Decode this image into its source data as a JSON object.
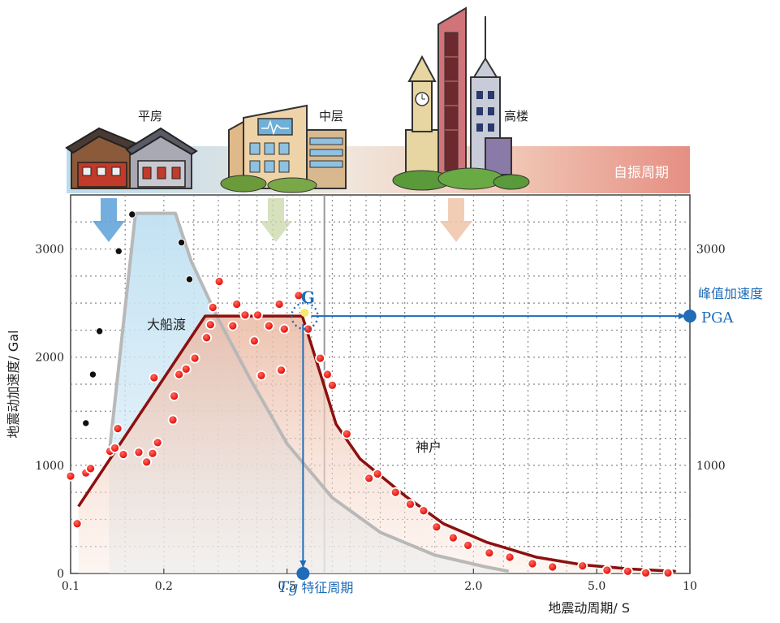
{
  "chart_data": {
    "type": "scatter",
    "xscale": "log",
    "xlim": [
      0.1,
      10
    ],
    "ylim": [
      0,
      3500
    ],
    "x_ticks": [
      {
        "v": 0.1,
        "label": "0.1"
      },
      {
        "v": 0.2,
        "label": "0.2"
      },
      {
        "v": 0.5,
        "label": "0.5"
      },
      {
        "v": 2.0,
        "label": "2.0"
      },
      {
        "v": 5.0,
        "label": "5.0"
      },
      {
        "v": 10,
        "label": "10"
      }
    ],
    "y_ticks_left": [
      {
        "v": 0,
        "label": "0"
      },
      {
        "v": 1000,
        "label": "1000"
      },
      {
        "v": 2000,
        "label": "2000"
      },
      {
        "v": 3000,
        "label": "3000"
      }
    ],
    "y_ticks_right": [
      {
        "v": 1000,
        "label": "1000"
      },
      {
        "v": 3000,
        "label": "3000"
      }
    ],
    "xlabel": "地震动周期/ S",
    "ylabel": "地震动加速度/ Gal",
    "grid": true,
    "series": [
      {
        "name": "大船渡",
        "color": "#111111",
        "points": [
          [
            0.112,
            1390
          ],
          [
            0.118,
            1840
          ],
          [
            0.124,
            2240
          ],
          [
            0.143,
            2980
          ],
          [
            0.158,
            3320
          ],
          [
            0.228,
            3060
          ],
          [
            0.242,
            2720
          ]
        ]
      },
      {
        "name": "神户",
        "color": "#ee1111",
        "points": [
          [
            0.1,
            900
          ],
          [
            0.105,
            460
          ],
          [
            0.112,
            930
          ],
          [
            0.116,
            970
          ],
          [
            0.134,
            1130
          ],
          [
            0.139,
            1160
          ],
          [
            0.142,
            1340
          ],
          [
            0.148,
            1100
          ],
          [
            0.166,
            1120
          ],
          [
            0.176,
            1030
          ],
          [
            0.184,
            1110
          ],
          [
            0.186,
            1810
          ],
          [
            0.191,
            1210
          ],
          [
            0.214,
            1420
          ],
          [
            0.216,
            1640
          ],
          [
            0.224,
            1840
          ],
          [
            0.236,
            1890
          ],
          [
            0.252,
            1990
          ],
          [
            0.275,
            2180
          ],
          [
            0.283,
            2300
          ],
          [
            0.288,
            2460
          ],
          [
            0.302,
            2700
          ],
          [
            0.334,
            2290
          ],
          [
            0.344,
            2490
          ],
          [
            0.366,
            2390
          ],
          [
            0.392,
            2150
          ],
          [
            0.402,
            2390
          ],
          [
            0.413,
            1830
          ],
          [
            0.437,
            2290
          ],
          [
            0.472,
            2490
          ],
          [
            0.479,
            1880
          ],
          [
            0.49,
            2260
          ],
          [
            0.545,
            2570
          ],
          [
            0.585,
            2260
          ],
          [
            0.64,
            1990
          ],
          [
            0.675,
            1840
          ],
          [
            0.7,
            1740
          ],
          [
            0.78,
            1290
          ],
          [
            0.92,
            880
          ],
          [
            0.98,
            920
          ],
          [
            1.12,
            750
          ],
          [
            1.25,
            640
          ],
          [
            1.38,
            580
          ],
          [
            1.52,
            430
          ],
          [
            1.72,
            330
          ],
          [
            1.92,
            260
          ],
          [
            2.25,
            190
          ],
          [
            2.62,
            150
          ],
          [
            3.1,
            90
          ],
          [
            3.6,
            60
          ],
          [
            4.5,
            70
          ],
          [
            5.4,
            30
          ],
          [
            6.3,
            20
          ],
          [
            7.2,
            5
          ],
          [
            8.5,
            5
          ]
        ]
      }
    ],
    "envelope_wide": [
      [
        0.133,
        1090
      ],
      [
        0.162,
        3330
      ],
      [
        0.218,
        3330
      ],
      [
        0.245,
        2890
      ],
      [
        0.3,
        2350
      ],
      [
        0.38,
        1800
      ],
      [
        0.5,
        1200
      ],
      [
        0.7,
        700
      ],
      [
        1.0,
        380
      ],
      [
        1.5,
        170
      ],
      [
        2.2,
        60
      ],
      [
        2.6,
        20
      ]
    ],
    "envelope_shenhu": [
      [
        0.106,
        620
      ],
      [
        0.272,
        2380
      ],
      [
        0.56,
        2380
      ],
      [
        0.615,
        2010
      ],
      [
        0.72,
        1380
      ],
      [
        0.86,
        1060
      ],
      [
        1.2,
        720
      ],
      [
        1.6,
        460
      ],
      [
        2.2,
        290
      ],
      [
        3.2,
        150
      ],
      [
        4.5,
        80
      ],
      [
        6.5,
        40
      ],
      [
        9.0,
        20
      ]
    ],
    "annotations": {
      "g_label": "G",
      "pga_label": "峰值加速度",
      "pga": "PGA",
      "tg_symbol": "Tg",
      "tg_text": "特征周期",
      "g_point": {
        "x": 0.57,
        "y": 2380
      },
      "label_dachuandu": "大船渡",
      "label_shenhu": "神户"
    }
  },
  "banner": {
    "label": "自振周期",
    "buildings": [
      {
        "name": "平房",
        "x": 0.155
      },
      {
        "name": "中层",
        "x": 0.56
      },
      {
        "name": "高楼",
        "x": 1.8
      }
    ]
  },
  "colors": {
    "banner_left": "#b9dcef",
    "banner_mid": "#f3dccd",
    "banner_right": "#e8948a",
    "envelope_gray": "#b8b8b8",
    "envelope_red": "#8b1010",
    "fill_blue": "#c6e4f3",
    "fill_peach": "#f2c6b3",
    "accent_blue": "#1f6cb8"
  }
}
